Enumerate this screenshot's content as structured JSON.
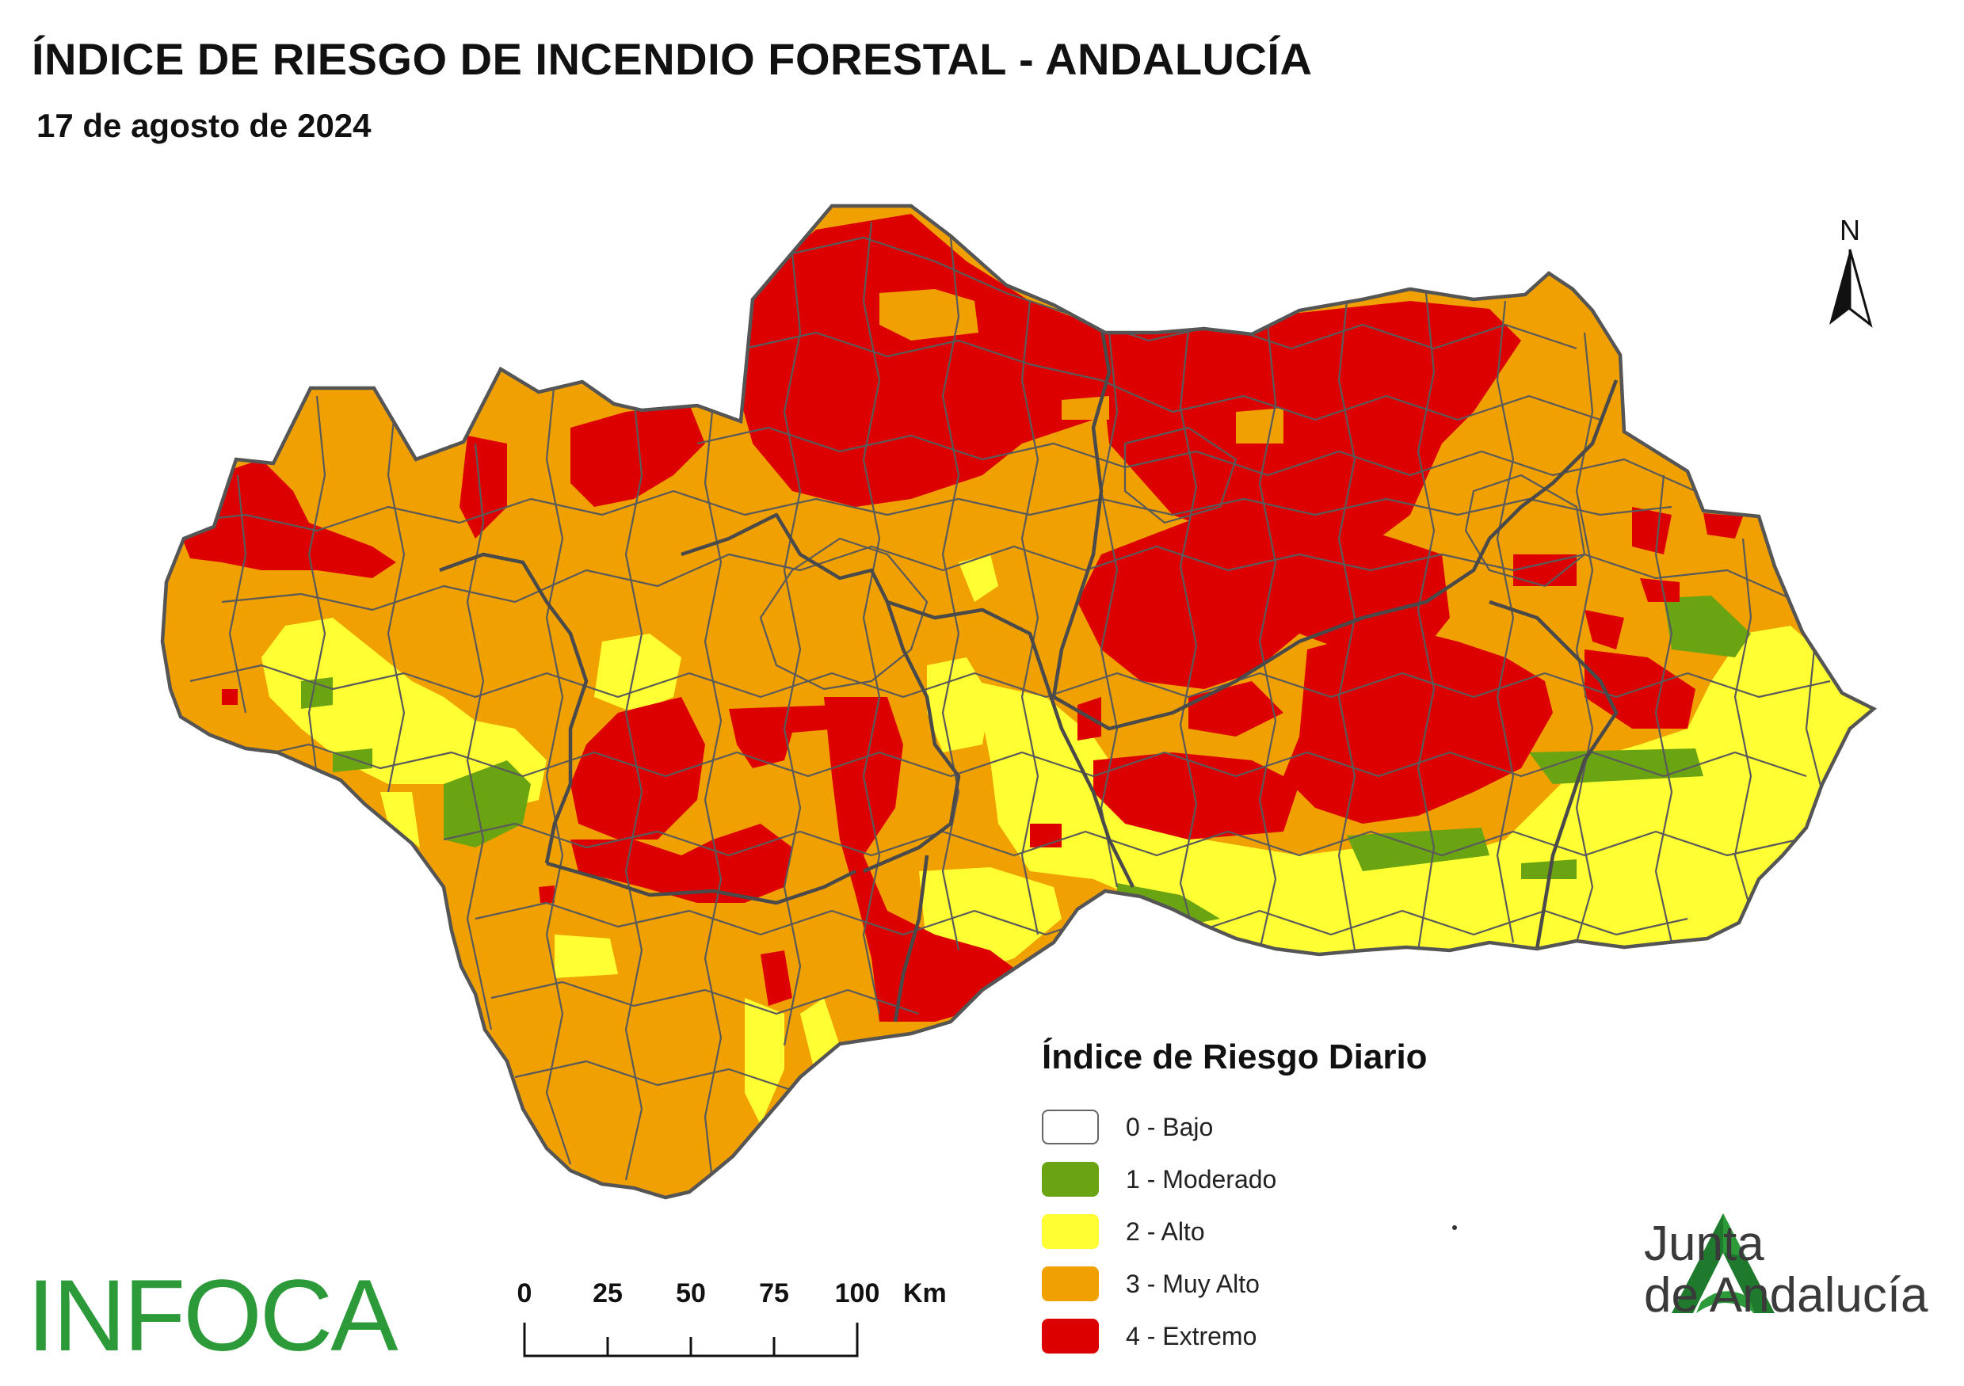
{
  "title": "ÍNDICE DE RIESGO DE INCENDIO FORESTAL - ANDALUCÍA",
  "subtitle": "17 de agosto de 2024",
  "north_arrow": {
    "letter": "N"
  },
  "legend": {
    "title": "Índice de Riesgo Diario",
    "items": [
      {
        "label": "0 - Bajo",
        "color": "#ffffff"
      },
      {
        "label": "1 - Moderado",
        "color": "#6aa412"
      },
      {
        "label": "2 - Alto",
        "color": "#ffff33"
      },
      {
        "label": "3 - Muy Alto",
        "color": "#f0a000"
      },
      {
        "label": "4 - Extremo",
        "color": "#dd0000"
      }
    ]
  },
  "scale_bar": {
    "ticks": [
      "0",
      "25",
      "50",
      "75",
      "100"
    ],
    "unit": "Km"
  },
  "logos": {
    "infoca": "INFOCA",
    "junta_line1": "Junta",
    "junta_line2": "de Andalucía"
  },
  "colors": {
    "border": "#555555",
    "moderado": "#6aa412",
    "alto": "#ffff33",
    "muy_alto": "#f0a000",
    "extremo": "#dd0000",
    "logo_green": "#2d9a3a",
    "logo_dark_green": "#1f7a2e"
  }
}
